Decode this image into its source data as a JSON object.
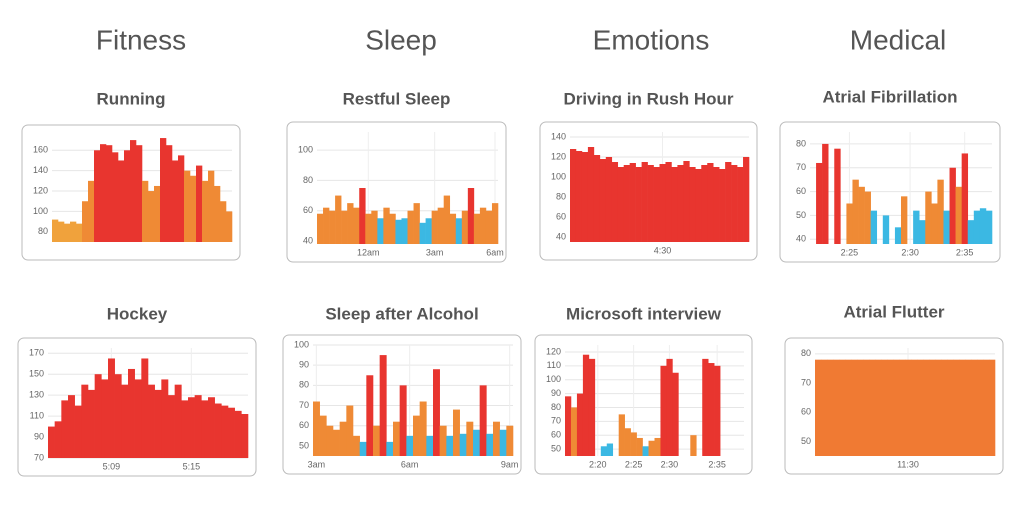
{
  "columns": [
    "Fitness",
    "Sleep",
    "Emotions",
    "Medical"
  ],
  "chart_data": [
    {
      "type": "bar",
      "title": "Running",
      "ylim": [
        70,
        175
      ],
      "yticks": [
        80,
        100,
        120,
        140,
        160
      ],
      "grid": true,
      "categories": [
        null,
        null,
        null,
        null,
        null,
        null,
        null,
        null,
        null,
        null,
        null,
        null,
        null,
        null,
        null,
        null,
        null,
        null,
        null,
        null,
        null,
        null,
        null,
        null,
        null,
        null,
        null,
        null,
        null,
        null
      ],
      "values": [
        92,
        90,
        88,
        90,
        88,
        110,
        130,
        160,
        166,
        165,
        158,
        150,
        160,
        170,
        165,
        130,
        120,
        125,
        172,
        165,
        150,
        155,
        140,
        135,
        145,
        130,
        140,
        125,
        110,
        100
      ],
      "colors": [
        "#f0a23c",
        "#f0a23c",
        "#f0a23c",
        "#f0a23c",
        "#f0a23c",
        "#ef8a35",
        "#ef8a35",
        "#e8352f",
        "#e8352f",
        "#e8352f",
        "#e8352f",
        "#e8352f",
        "#e8352f",
        "#e8352f",
        "#e8352f",
        "#ef8a35",
        "#ef8a35",
        "#ef8a35",
        "#e8352f",
        "#e8352f",
        "#e8352f",
        "#e8352f",
        "#ef8a35",
        "#ef8a35",
        "#e8352f",
        "#ef8a35",
        "#ef8a35",
        "#ef8a35",
        "#ef8a35",
        "#ef8a35"
      ]
    },
    {
      "type": "bar",
      "title": "Restful Sleep",
      "ylim": [
        38,
        112
      ],
      "yticks": [
        40,
        60,
        80,
        100
      ],
      "grid": true,
      "categories": [
        null,
        null,
        null,
        null,
        null,
        null,
        null,
        null,
        "12am",
        null,
        null,
        null,
        null,
        null,
        null,
        null,
        null,
        null,
        null,
        "3am",
        null,
        null,
        null,
        null,
        null,
        null,
        null,
        null,
        null,
        "6am"
      ],
      "values": [
        58,
        62,
        60,
        70,
        60,
        65,
        62,
        75,
        58,
        60,
        55,
        62,
        58,
        54,
        55,
        60,
        65,
        52,
        55,
        60,
        62,
        70,
        58,
        55,
        60,
        75,
        58,
        62,
        60,
        65
      ],
      "colors": [
        "#ef8a35",
        "#ef8a35",
        "#ef8a35",
        "#ef8a35",
        "#ef8a35",
        "#ef8a35",
        "#ef8a35",
        "#e8352f",
        "#ef8a35",
        "#ef8a35",
        "#3bb8e3",
        "#ef8a35",
        "#ef8a35",
        "#3bb8e3",
        "#3bb8e3",
        "#ef8a35",
        "#ef8a35",
        "#3bb8e3",
        "#3bb8e3",
        "#ef8a35",
        "#ef8a35",
        "#ef8a35",
        "#ef8a35",
        "#3bb8e3",
        "#ef8a35",
        "#e8352f",
        "#ef8a35",
        "#ef8a35",
        "#ef8a35",
        "#ef8a35"
      ]
    },
    {
      "type": "bar",
      "title": "Driving in Rush Hour",
      "ylim": [
        35,
        145
      ],
      "yticks": [
        40,
        60,
        80,
        100,
        120,
        140
      ],
      "grid": true,
      "color": "#e8352f",
      "categories": [
        null,
        null,
        null,
        null,
        null,
        null,
        null,
        null,
        null,
        null,
        null,
        null,
        null,
        null,
        null,
        "4:30",
        null,
        null,
        null,
        null,
        null,
        null,
        null,
        null,
        null,
        null,
        null,
        null,
        null,
        null
      ],
      "values": [
        128,
        126,
        125,
        130,
        122,
        118,
        120,
        115,
        110,
        112,
        114,
        110,
        115,
        112,
        110,
        113,
        115,
        110,
        112,
        116,
        110,
        108,
        112,
        114,
        110,
        108,
        115,
        112,
        110,
        120
      ]
    },
    {
      "type": "bar",
      "title": "Atrial Fibrillation",
      "ylim": [
        38,
        85
      ],
      "yticks": [
        40,
        50,
        60,
        70,
        80
      ],
      "grid": true,
      "categories": [
        null,
        null,
        null,
        null,
        null,
        null,
        "2:25",
        null,
        null,
        null,
        null,
        null,
        null,
        null,
        null,
        null,
        "2:30",
        null,
        null,
        null,
        null,
        null,
        null,
        null,
        null,
        "2:35",
        null,
        null,
        null,
        null
      ],
      "values": [
        null,
        72,
        80,
        null,
        78,
        null,
        55,
        65,
        62,
        60,
        52,
        null,
        50,
        null,
        45,
        58,
        null,
        52,
        48,
        60,
        55,
        65,
        52,
        70,
        62,
        76,
        48,
        52,
        53,
        52
      ],
      "colors": [
        null,
        "#e8352f",
        "#e8352f",
        null,
        "#e8352f",
        null,
        "#ef8a35",
        "#ef8a35",
        "#ef8a35",
        "#ef8a35",
        "#3bb8e3",
        null,
        "#3bb8e3",
        null,
        "#3bb8e3",
        "#ef8a35",
        null,
        "#3bb8e3",
        "#3bb8e3",
        "#ef8a35",
        "#ef8a35",
        "#ef8a35",
        "#3bb8e3",
        "#e8352f",
        "#ef8a35",
        "#e8352f",
        "#3bb8e3",
        "#3bb8e3",
        "#3bb8e3",
        "#3bb8e3"
      ]
    },
    {
      "type": "bar",
      "title": "Hockey",
      "ylim": [
        70,
        175
      ],
      "yticks": [
        70,
        90,
        110,
        130,
        150,
        170
      ],
      "grid": true,
      "color": "#e8352f",
      "categories": [
        null,
        null,
        null,
        null,
        null,
        null,
        null,
        null,
        null,
        "5:09",
        null,
        null,
        null,
        null,
        null,
        null,
        null,
        null,
        null,
        null,
        null,
        "5:15",
        null,
        null,
        null,
        null,
        null,
        null,
        null,
        null
      ],
      "values": [
        100,
        105,
        125,
        130,
        120,
        140,
        135,
        150,
        145,
        165,
        150,
        140,
        155,
        145,
        165,
        140,
        135,
        145,
        130,
        140,
        125,
        128,
        130,
        125,
        128,
        122,
        120,
        118,
        115,
        112
      ]
    },
    {
      "type": "bar",
      "title": "Sleep after Alcohol",
      "ylim": [
        45,
        100
      ],
      "yticks": [
        50,
        60,
        70,
        80,
        90,
        100
      ],
      "grid": true,
      "categories": [
        "3am",
        null,
        null,
        null,
        null,
        null,
        null,
        null,
        null,
        null,
        null,
        null,
        null,
        null,
        "6am",
        null,
        null,
        null,
        null,
        null,
        null,
        null,
        null,
        null,
        null,
        null,
        null,
        null,
        null,
        "9am"
      ],
      "values": [
        72,
        65,
        60,
        58,
        62,
        70,
        55,
        52,
        85,
        60,
        95,
        52,
        62,
        80,
        55,
        65,
        72,
        55,
        88,
        60,
        55,
        68,
        56,
        62,
        58,
        80,
        56,
        62,
        58,
        60
      ],
      "colors": [
        "#ef8a35",
        "#ef8a35",
        "#ef8a35",
        "#ef8a35",
        "#ef8a35",
        "#ef8a35",
        "#ef8a35",
        "#3bb8e3",
        "#e8352f",
        "#ef8a35",
        "#e8352f",
        "#3bb8e3",
        "#ef8a35",
        "#e8352f",
        "#3bb8e3",
        "#ef8a35",
        "#ef8a35",
        "#3bb8e3",
        "#e8352f",
        "#ef8a35",
        "#3bb8e3",
        "#ef8a35",
        "#3bb8e3",
        "#ef8a35",
        "#3bb8e3",
        "#e8352f",
        "#3bb8e3",
        "#ef8a35",
        "#3bb8e3",
        "#ef8a35"
      ]
    },
    {
      "type": "bar",
      "title": "Microsoft interview",
      "ylim": [
        45,
        125
      ],
      "yticks": [
        50,
        60,
        70,
        80,
        90,
        100,
        110,
        120
      ],
      "grid": true,
      "categories": [
        null,
        null,
        null,
        null,
        null,
        "2:20",
        null,
        null,
        null,
        null,
        null,
        "2:25",
        null,
        null,
        null,
        null,
        null,
        "2:30",
        null,
        null,
        null,
        null,
        null,
        null,
        null,
        "2:35",
        null,
        null,
        null,
        null
      ],
      "values": [
        88,
        80,
        90,
        118,
        115,
        null,
        52,
        54,
        null,
        75,
        65,
        62,
        58,
        52,
        56,
        58,
        110,
        115,
        105,
        null,
        null,
        60,
        null,
        115,
        112,
        110,
        null,
        null,
        null,
        null
      ],
      "colors": [
        "#e8352f",
        "#ef8a35",
        "#e8352f",
        "#e8352f",
        "#e8352f",
        null,
        "#3bb8e3",
        "#3bb8e3",
        null,
        "#ef8a35",
        "#ef8a35",
        "#ef8a35",
        "#ef8a35",
        "#3bb8e3",
        "#ef8a35",
        "#ef8a35",
        "#e8352f",
        "#e8352f",
        "#e8352f",
        null,
        null,
        "#ef8a35",
        null,
        "#e8352f",
        "#e8352f",
        "#e8352f",
        null,
        null,
        null,
        null
      ]
    },
    {
      "type": "bar",
      "title": "Atrial Flutter",
      "ylim": [
        45,
        82
      ],
      "yticks": [
        50,
        60,
        70,
        80
      ],
      "grid": true,
      "color": "#f07a33",
      "categories": [
        null,
        null,
        null,
        null,
        null,
        null,
        null,
        null,
        null,
        null,
        null,
        null,
        null,
        null,
        null,
        "11:30",
        null,
        null,
        null,
        null,
        null,
        null,
        null,
        null,
        null,
        null,
        null,
        null,
        null,
        null
      ],
      "values": [
        78,
        78,
        78,
        78,
        78,
        78,
        78,
        78,
        78,
        78,
        78,
        78,
        78,
        78,
        78,
        78,
        78,
        78,
        78,
        78,
        78,
        78,
        78,
        78,
        78,
        78,
        78,
        78,
        78,
        78
      ]
    }
  ]
}
